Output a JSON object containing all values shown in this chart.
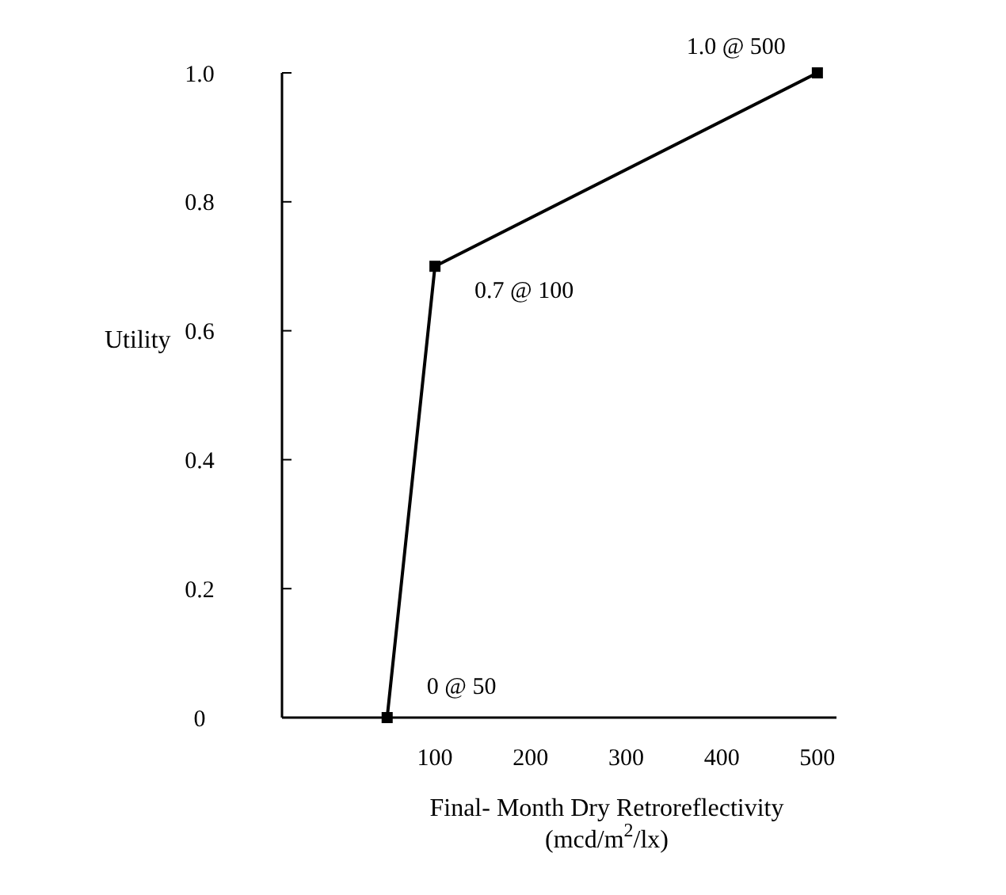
{
  "chart_data": {
    "type": "line",
    "ylabel": "Utility",
    "xlabel": "Final- Month  Dry Retroreflectivity (mcd/m$^{2}$/lx)",
    "x": [
      50,
      100,
      500
    ],
    "series": [
      {
        "color": "#000000",
        "values": [
          0,
          0.7,
          1.0
        ]
      }
    ],
    "xlim": [
      -60,
      520
    ],
    "xticks": [
      100,
      200,
      300,
      400,
      500
    ],
    "ylim": [
      0,
      1.0
    ],
    "yticks": [
      0,
      0.2,
      0.4,
      0.6,
      0.8,
      {
        "value": 1,
        "label": "1.0"
      }
    ],
    "marker": "square",
    "line_style": "solid",
    "annotations": [
      {
        "text": "0 @ 50",
        "x": 50,
        "y": 0
      },
      {
        "text": "0.7 @ 100",
        "x": 100,
        "y": 0.7
      },
      {
        "text": "1.0 @ 500",
        "x": 500,
        "y": 1.0
      }
    ]
  }
}
